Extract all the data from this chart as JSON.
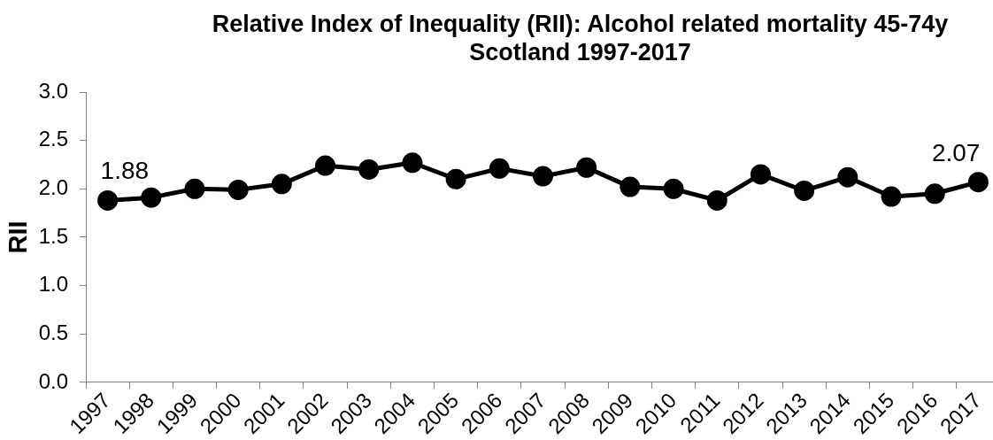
{
  "chart_data": {
    "type": "line",
    "title": "Relative Index of Inequality (RII): Alcohol related mortality 45-74y",
    "subtitle": "Scotland 1997-2017",
    "ylabel": "RII",
    "categories": [
      "1997",
      "1998",
      "1999",
      "2000",
      "2001",
      "2002",
      "2003",
      "2004",
      "2005",
      "2006",
      "2007",
      "2008",
      "2009",
      "2010",
      "2011",
      "2012",
      "2013",
      "2014",
      "2015",
      "2016",
      "2017"
    ],
    "values": [
      1.88,
      1.91,
      2.0,
      1.99,
      2.05,
      2.24,
      2.2,
      2.27,
      2.1,
      2.21,
      2.13,
      2.22,
      2.02,
      2.0,
      1.88,
      2.15,
      1.98,
      2.12,
      1.92,
      1.95,
      2.07
    ],
    "value_labels": [
      "1.88",
      null,
      null,
      null,
      null,
      null,
      null,
      null,
      null,
      null,
      null,
      null,
      null,
      null,
      null,
      null,
      null,
      null,
      null,
      null,
      "2.07"
    ],
    "color": "#000000",
    "marker": "circle",
    "ylim": [
      0,
      3
    ],
    "yticks": [
      {
        "value": 0,
        "label": "0.0"
      },
      {
        "value": 0.5,
        "label": "0.5"
      },
      {
        "value": 1,
        "label": "1.0"
      },
      {
        "value": 1.5,
        "label": "1.5"
      },
      {
        "value": 2,
        "label": "2.0"
      },
      {
        "value": 2.5,
        "label": "2.5"
      },
      {
        "value": 3,
        "label": "3.0"
      }
    ]
  }
}
